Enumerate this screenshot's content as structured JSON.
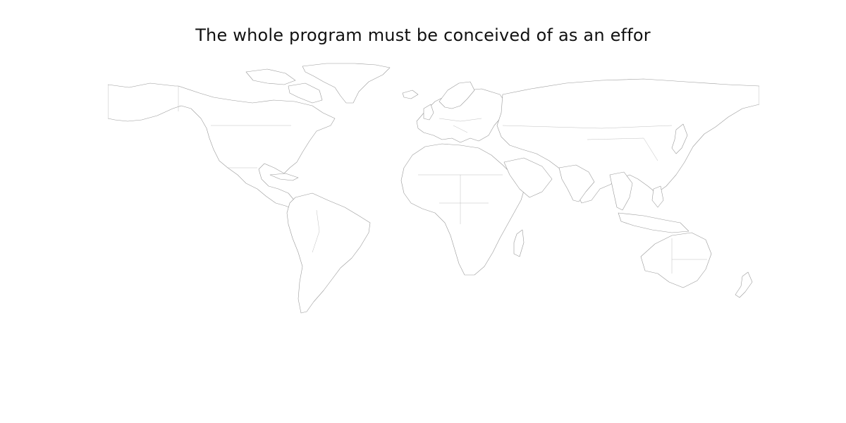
{
  "map": {
    "title": "The whole program must be conceived of as an effor"
  }
}
